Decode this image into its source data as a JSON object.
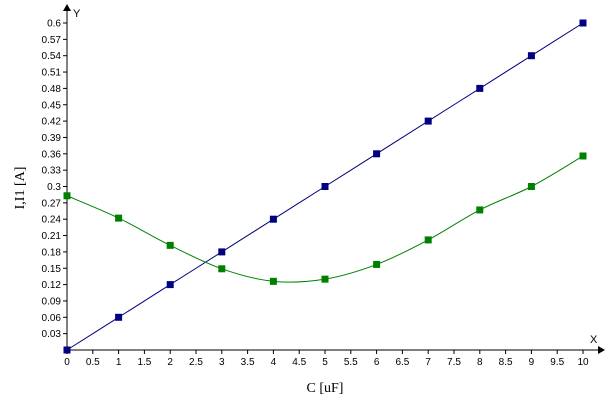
{
  "chart_data": {
    "type": "line",
    "xlabel": "C [uF]",
    "ylabel": "I,I1 [A]",
    "x_axis_letter": "X",
    "y_axis_letter": "Y",
    "xlim": [
      0,
      10
    ],
    "ylim": [
      0,
      0.6
    ],
    "x_ticks": [
      "0",
      "0.5",
      "1",
      "1.5",
      "2",
      "2.5",
      "3",
      "3.5",
      "4",
      "4.5",
      "5",
      "5.5",
      "6",
      "6.5",
      "7",
      "7.5",
      "8",
      "8.5",
      "9",
      "9.5",
      "10"
    ],
    "y_ticks": [
      "0.03",
      "0.06",
      "0.09",
      "0.12",
      "0.15",
      "0.18",
      "0.21",
      "0.24",
      "0.27",
      "0.3",
      "0.33",
      "0.36",
      "0.39",
      "0.42",
      "0.45",
      "0.48",
      "0.51",
      "0.54",
      "0.57",
      "0.6"
    ],
    "grid": false,
    "series": [
      {
        "color": "#000080",
        "marker": "square",
        "x": [
          0,
          1,
          2,
          3,
          4,
          5,
          6,
          7,
          8,
          9,
          10
        ],
        "y": [
          0,
          0.06,
          0.12,
          0.18,
          0.24,
          0.3,
          0.36,
          0.42,
          0.48,
          0.54,
          0.6
        ]
      },
      {
        "color": "#008000",
        "marker": "square",
        "x": [
          0,
          1,
          2,
          3,
          4,
          5,
          6,
          7,
          8,
          9,
          10
        ],
        "y": [
          0.283,
          0.242,
          0.192,
          0.149,
          0.126,
          0.13,
          0.157,
          0.202,
          0.257,
          0.3,
          0.356
        ]
      }
    ]
  }
}
